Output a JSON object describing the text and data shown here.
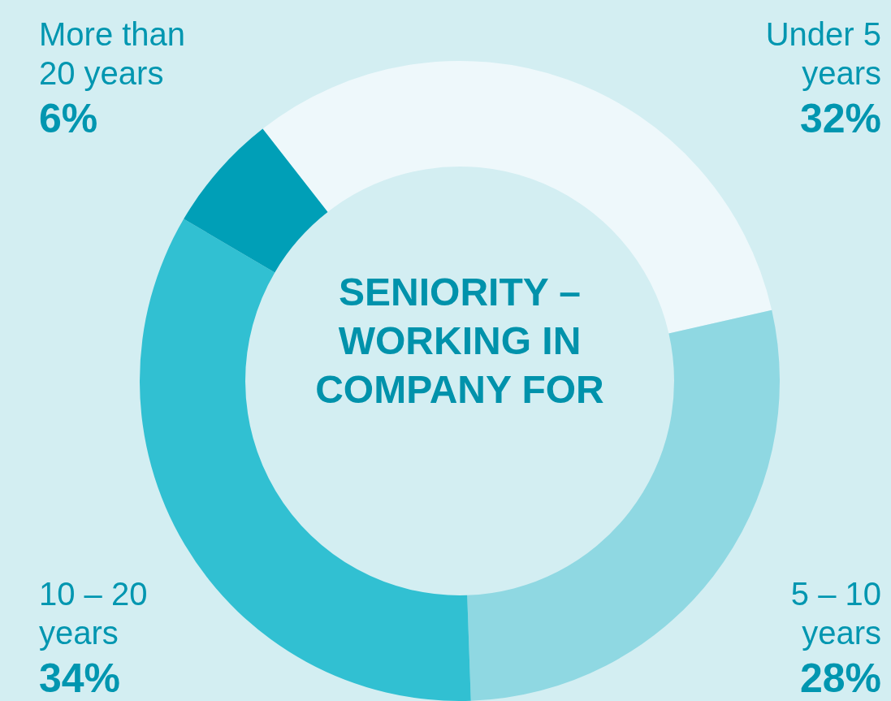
{
  "chart_data": {
    "type": "donut",
    "title": "SENIORITY – WORKING IN COMPANY FOR",
    "categories": [
      "Under 5 years",
      "5 – 10 years",
      "10 – 20 years",
      "More than 20 years"
    ],
    "values": [
      32,
      28,
      34,
      6
    ],
    "value_labels": [
      "32%",
      "28%",
      "34%",
      "6%"
    ],
    "colors": [
      "#eef8fb",
      "#8fd8e2",
      "#31c0d2",
      "#009fb7"
    ],
    "legend": false
  }
}
